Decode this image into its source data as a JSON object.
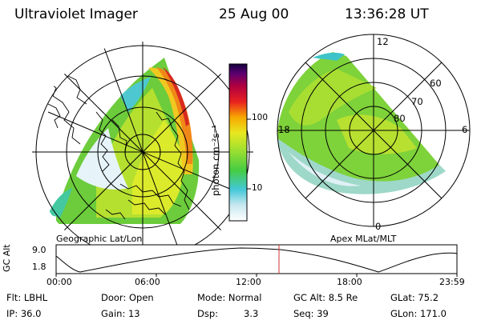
{
  "header": {
    "instrument": "Ultraviolet Imager",
    "date": "25 Aug 00",
    "time": "13:36:28 UT"
  },
  "left_panel": {
    "label": "Geographic Lat/Lon"
  },
  "right_panel": {
    "label": "Apex MLat/MLT",
    "mlt_labels": [
      "12",
      "18",
      "6",
      "0"
    ],
    "lat_labels": [
      "60",
      "70",
      "80"
    ]
  },
  "colorbar": {
    "unit_label": "photon cm⁻²s⁻¹",
    "ticks": [
      "100",
      "10"
    ],
    "scale": "log",
    "colors": [
      "#ffffff",
      "#c8e8f0",
      "#44c8d8",
      "#44cc44",
      "#9ee030",
      "#e8e820",
      "#f8a800",
      "#e82020",
      "#b00040",
      "#5a0070",
      "#140040"
    ]
  },
  "timeseries": {
    "ylabel": "GC Alt",
    "yticks": [
      "9.0",
      "1.8"
    ],
    "xticks": [
      "00:00",
      "06:00",
      "12:00",
      "18:00",
      "23:59"
    ],
    "current_time_marker": "13:36:28",
    "curve_color": "#000000",
    "marker_color": "#d03030"
  },
  "info": {
    "flt": "Flt: LBHL",
    "door": "Door: Open",
    "mode": "Mode: Normal",
    "gcalt": "GC Alt: 8.5 Re",
    "glat": "GLat: 75.2",
    "ip": "IP: 36.0",
    "gain": "Gain: 13",
    "dsp_label": "Dsp:",
    "dsp_value": "3.3",
    "seq": "Seq: 39",
    "glon": "GLon: 171.0"
  }
}
